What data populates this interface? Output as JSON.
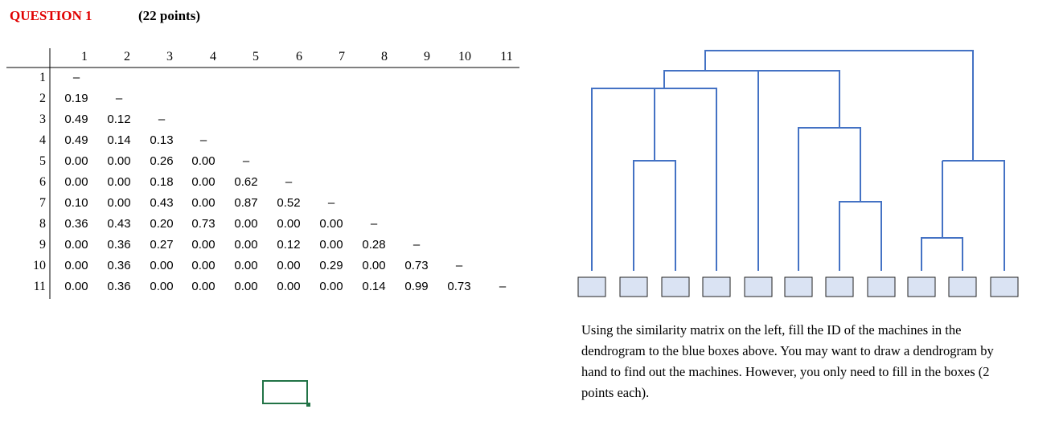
{
  "header": {
    "question": "QUESTION 1",
    "points": "(22 points)"
  },
  "matrix": {
    "columns": [
      "1",
      "2",
      "3",
      "4",
      "5",
      "6",
      "7",
      "8",
      "9",
      "10",
      "11"
    ],
    "rows": [
      {
        "label": "1",
        "cells": [
          "–"
        ]
      },
      {
        "label": "2",
        "cells": [
          "0.19",
          "–"
        ]
      },
      {
        "label": "3",
        "cells": [
          "0.49",
          "0.12",
          "–"
        ]
      },
      {
        "label": "4",
        "cells": [
          "0.49",
          "0.14",
          "0.13",
          "–"
        ]
      },
      {
        "label": "5",
        "cells": [
          "0.00",
          "0.00",
          "0.26",
          "0.00",
          "–"
        ]
      },
      {
        "label": "6",
        "cells": [
          "0.00",
          "0.00",
          "0.18",
          "0.00",
          "0.62",
          "–"
        ]
      },
      {
        "label": "7",
        "cells": [
          "0.10",
          "0.00",
          "0.43",
          "0.00",
          "0.87",
          "0.52",
          "–"
        ]
      },
      {
        "label": "8",
        "cells": [
          "0.36",
          "0.43",
          "0.20",
          "0.73",
          "0.00",
          "0.00",
          "0.00",
          "–"
        ]
      },
      {
        "label": "9",
        "cells": [
          "0.00",
          "0.36",
          "0.27",
          "0.00",
          "0.00",
          "0.12",
          "0.00",
          "0.28",
          "–"
        ]
      },
      {
        "label": "10",
        "cells": [
          "0.00",
          "0.36",
          "0.00",
          "0.00",
          "0.00",
          "0.00",
          "0.29",
          "0.00",
          "0.73",
          "–"
        ]
      },
      {
        "label": "11",
        "cells": [
          "0.00",
          "0.36",
          "0.00",
          "0.00",
          "0.00",
          "0.00",
          "0.00",
          "0.14",
          "0.99",
          "0.73",
          "–"
        ]
      }
    ]
  },
  "instructions": "Using the similarity matrix on the left, fill the ID of the machines in the dendrogram to the blue boxes above. You may want to draw a dendrogram by hand to find out the machines. However, you only need to fill in the boxes (2 points each)."
}
